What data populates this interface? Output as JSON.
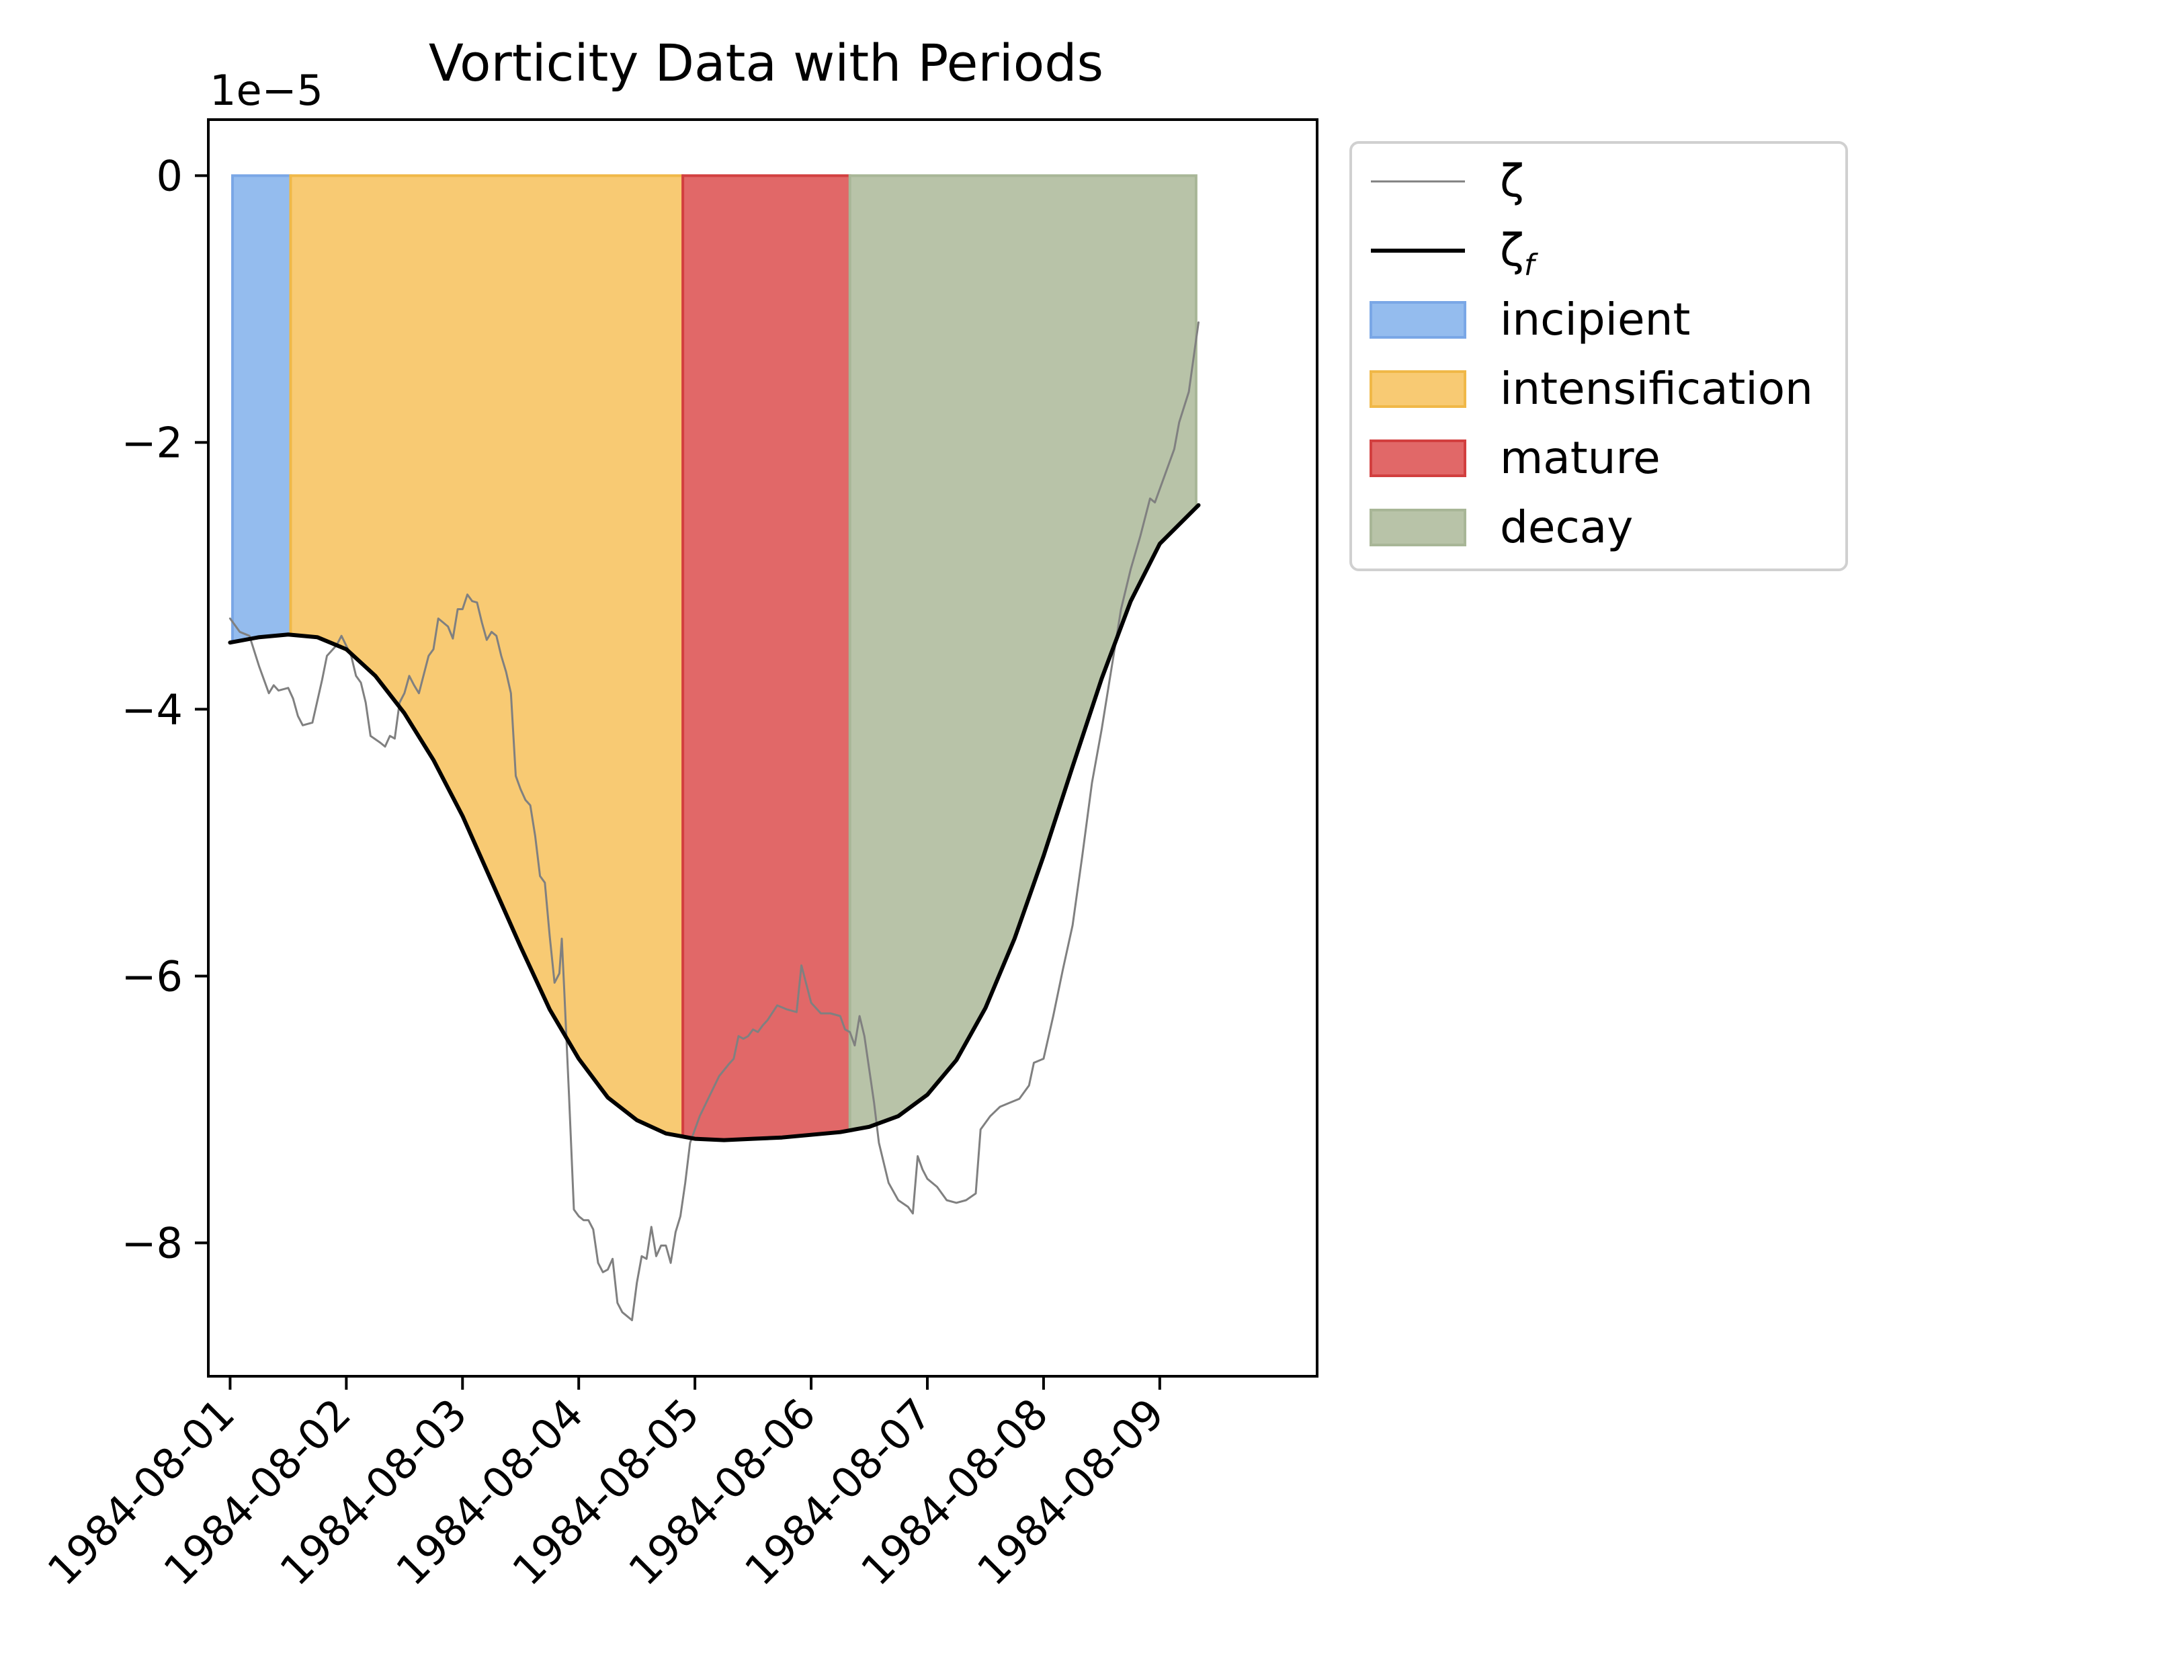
{
  "chart_data": {
    "type": "line",
    "title": "Vorticity Data with Periods",
    "offset_label": "1e−5",
    "xlabel": "",
    "ylabel": "",
    "xlim": [
      "1984-07-31T19:30",
      "1984-08-10T08:30"
    ],
    "ylim": [
      -9.0,
      0.42
    ],
    "x_ticks": [
      "1984-08-01",
      "1984-08-02",
      "1984-08-03",
      "1984-08-04",
      "1984-08-05",
      "1984-08-06",
      "1984-08-07",
      "1984-08-08",
      "1984-08-09"
    ],
    "y_ticks": [
      0,
      -2,
      -4,
      -6,
      -8
    ],
    "y_tick_labels": [
      "0",
      "−2",
      "−4",
      "−6",
      "−8"
    ],
    "grid": false,
    "legend_position": "outside right, top",
    "periods": [
      {
        "name": "incipient",
        "start": "1984-08-01T00:30",
        "end": "1984-08-01T12:30",
        "color": "#94bcee",
        "edge": "#7aa7e6"
      },
      {
        "name": "intensification",
        "start": "1984-08-01T12:30",
        "end": "1984-08-04T21:30",
        "color": "#f8ca73",
        "edge": "#f0b848"
      },
      {
        "name": "mature",
        "start": "1984-08-04T21:30",
        "end": "1984-08-06T08:00",
        "color": "#e16868",
        "edge": "#d23f3f"
      },
      {
        "name": "decay",
        "start": "1984-08-06T08:00",
        "end": "1984-08-09T07:30",
        "color": "#b8c3a8",
        "edge": "#a8b697"
      }
    ],
    "series": [
      {
        "name": "ζ",
        "color": "#808080",
        "points": [
          [
            "1984-08-01T00:00",
            -3.32
          ],
          [
            "1984-08-01T02:00",
            -3.42
          ],
          [
            "1984-08-01T04:00",
            -3.45
          ],
          [
            "1984-08-01T06:00",
            -3.68
          ],
          [
            "1984-08-01T08:00",
            -3.88
          ],
          [
            "1984-08-01T09:00",
            -3.82
          ],
          [
            "1984-08-01T10:00",
            -3.86
          ],
          [
            "1984-08-01T12:00",
            -3.84
          ],
          [
            "1984-08-01T13:00",
            -3.92
          ],
          [
            "1984-08-01T14:00",
            -4.05
          ],
          [
            "1984-08-01T15:00",
            -4.12
          ],
          [
            "1984-08-01T17:00",
            -4.1
          ],
          [
            "1984-08-01T19:00",
            -3.78
          ],
          [
            "1984-08-01T20:00",
            -3.6
          ],
          [
            "1984-08-01T22:00",
            -3.52
          ],
          [
            "1984-08-01T23:00",
            -3.45
          ],
          [
            "1984-08-02T01:00",
            -3.6
          ],
          [
            "1984-08-02T02:00",
            -3.75
          ],
          [
            "1984-08-02T03:00",
            -3.8
          ],
          [
            "1984-08-02T04:00",
            -3.95
          ],
          [
            "1984-08-02T05:00",
            -4.2
          ],
          [
            "1984-08-02T07:00",
            -4.25
          ],
          [
            "1984-08-02T08:00",
            -4.28
          ],
          [
            "1984-08-02T09:00",
            -4.2
          ],
          [
            "1984-08-02T10:00",
            -4.22
          ],
          [
            "1984-08-02T11:00",
            -3.95
          ],
          [
            "1984-08-02T12:00",
            -3.88
          ],
          [
            "1984-08-02T13:00",
            -3.75
          ],
          [
            "1984-08-02T14:00",
            -3.82
          ],
          [
            "1984-08-02T15:00",
            -3.88
          ],
          [
            "1984-08-02T17:00",
            -3.6
          ],
          [
            "1984-08-02T18:00",
            -3.55
          ],
          [
            "1984-08-02T19:00",
            -3.32
          ],
          [
            "1984-08-02T20:00",
            -3.35
          ],
          [
            "1984-08-02T21:00",
            -3.38
          ],
          [
            "1984-08-02T22:00",
            -3.47
          ],
          [
            "1984-08-02T23:00",
            -3.25
          ],
          [
            "1984-08-03T00:00",
            -3.25
          ],
          [
            "1984-08-03T01:00",
            -3.14
          ],
          [
            "1984-08-03T02:00",
            -3.19
          ],
          [
            "1984-08-03T03:00",
            -3.2
          ],
          [
            "1984-08-03T04:00",
            -3.35
          ],
          [
            "1984-08-03T05:00",
            -3.48
          ],
          [
            "1984-08-03T06:00",
            -3.42
          ],
          [
            "1984-08-03T07:00",
            -3.45
          ],
          [
            "1984-08-03T08:00",
            -3.6
          ],
          [
            "1984-08-03T09:00",
            -3.72
          ],
          [
            "1984-08-03T10:00",
            -3.88
          ],
          [
            "1984-08-03T11:00",
            -4.5
          ],
          [
            "1984-08-03T12:00",
            -4.6
          ],
          [
            "1984-08-03T13:00",
            -4.68
          ],
          [
            "1984-08-03T14:00",
            -4.72
          ],
          [
            "1984-08-03T15:00",
            -4.95
          ],
          [
            "1984-08-03T16:00",
            -5.25
          ],
          [
            "1984-08-03T17:00",
            -5.3
          ],
          [
            "1984-08-03T18:00",
            -5.7
          ],
          [
            "1984-08-03T19:00",
            -6.05
          ],
          [
            "1984-08-03T20:00",
            -5.98
          ],
          [
            "1984-08-03T20:30",
            -5.72
          ],
          [
            "1984-08-03T21:00",
            -6.1
          ],
          [
            "1984-08-03T22:00",
            -6.9
          ],
          [
            "1984-08-03T23:00",
            -7.75
          ],
          [
            "1984-08-04T00:00",
            -7.8
          ],
          [
            "1984-08-04T01:00",
            -7.83
          ],
          [
            "1984-08-04T02:00",
            -7.83
          ],
          [
            "1984-08-04T03:00",
            -7.9
          ],
          [
            "1984-08-04T04:00",
            -8.15
          ],
          [
            "1984-08-04T05:00",
            -8.22
          ],
          [
            "1984-08-04T06:00",
            -8.2
          ],
          [
            "1984-08-04T07:00",
            -8.12
          ],
          [
            "1984-08-04T08:00",
            -8.45
          ],
          [
            "1984-08-04T09:00",
            -8.52
          ],
          [
            "1984-08-04T10:00",
            -8.55
          ],
          [
            "1984-08-04T11:00",
            -8.58
          ],
          [
            "1984-08-04T12:00",
            -8.3
          ],
          [
            "1984-08-04T13:00",
            -8.1
          ],
          [
            "1984-08-04T14:00",
            -8.12
          ],
          [
            "1984-08-04T15:00",
            -7.88
          ],
          [
            "1984-08-04T16:00",
            -8.1
          ],
          [
            "1984-08-04T17:00",
            -8.02
          ],
          [
            "1984-08-04T18:00",
            -8.02
          ],
          [
            "1984-08-04T19:00",
            -8.15
          ],
          [
            "1984-08-04T20:00",
            -7.92
          ],
          [
            "1984-08-04T21:00",
            -7.8
          ],
          [
            "1984-08-04T22:00",
            -7.55
          ],
          [
            "1984-08-04T23:00",
            -7.25
          ],
          [
            "1984-08-05T01:00",
            -7.05
          ],
          [
            "1984-08-05T03:00",
            -6.9
          ],
          [
            "1984-08-05T05:00",
            -6.75
          ],
          [
            "1984-08-05T07:00",
            -6.66
          ],
          [
            "1984-08-05T08:00",
            -6.62
          ],
          [
            "1984-08-05T09:00",
            -6.45
          ],
          [
            "1984-08-05T10:00",
            -6.47
          ],
          [
            "1984-08-05T11:00",
            -6.45
          ],
          [
            "1984-08-05T12:00",
            -6.4
          ],
          [
            "1984-08-05T13:00",
            -6.42
          ],
          [
            "1984-08-05T14:00",
            -6.37
          ],
          [
            "1984-08-05T15:00",
            -6.33
          ],
          [
            "1984-08-05T17:00",
            -6.22
          ],
          [
            "1984-08-05T19:00",
            -6.25
          ],
          [
            "1984-08-05T21:00",
            -6.27
          ],
          [
            "1984-08-05T22:00",
            -5.92
          ],
          [
            "1984-08-06T00:00",
            -6.2
          ],
          [
            "1984-08-06T02:00",
            -6.28
          ],
          [
            "1984-08-06T04:00",
            -6.28
          ],
          [
            "1984-08-06T06:00",
            -6.3
          ],
          [
            "1984-08-06T07:00",
            -6.4
          ],
          [
            "1984-08-06T08:00",
            -6.42
          ],
          [
            "1984-08-06T09:00",
            -6.52
          ],
          [
            "1984-08-06T10:00",
            -6.3
          ],
          [
            "1984-08-06T11:00",
            -6.45
          ],
          [
            "1984-08-06T12:00",
            -6.7
          ],
          [
            "1984-08-06T13:00",
            -6.95
          ],
          [
            "1984-08-06T14:00",
            -7.25
          ],
          [
            "1984-08-06T16:00",
            -7.55
          ],
          [
            "1984-08-06T18:00",
            -7.68
          ],
          [
            "1984-08-06T20:00",
            -7.73
          ],
          [
            "1984-08-06T21:00",
            -7.78
          ],
          [
            "1984-08-06T22:00",
            -7.35
          ],
          [
            "1984-08-06T23:00",
            -7.45
          ],
          [
            "1984-08-07T00:00",
            -7.52
          ],
          [
            "1984-08-07T02:00",
            -7.58
          ],
          [
            "1984-08-07T04:00",
            -7.68
          ],
          [
            "1984-08-07T06:00",
            -7.7
          ],
          [
            "1984-08-07T08:00",
            -7.68
          ],
          [
            "1984-08-07T10:00",
            -7.63
          ],
          [
            "1984-08-07T11:00",
            -7.15
          ],
          [
            "1984-08-07T13:00",
            -7.05
          ],
          [
            "1984-08-07T15:00",
            -6.98
          ],
          [
            "1984-08-07T17:00",
            -6.95
          ],
          [
            "1984-08-07T19:00",
            -6.92
          ],
          [
            "1984-08-07T21:00",
            -6.82
          ],
          [
            "1984-08-07T22:00",
            -6.65
          ],
          [
            "1984-08-08T00:00",
            -6.62
          ],
          [
            "1984-08-08T02:00",
            -6.3
          ],
          [
            "1984-08-08T04:00",
            -5.95
          ],
          [
            "1984-08-08T06:00",
            -5.62
          ],
          [
            "1984-08-08T08:00",
            -5.1
          ],
          [
            "1984-08-08T10:00",
            -4.55
          ],
          [
            "1984-08-08T12:00",
            -4.15
          ],
          [
            "1984-08-08T14:00",
            -3.7
          ],
          [
            "1984-08-08T16:00",
            -3.25
          ],
          [
            "1984-08-08T18:00",
            -2.95
          ],
          [
            "1984-08-08T20:00",
            -2.7
          ],
          [
            "1984-08-08T22:00",
            -2.42
          ],
          [
            "1984-08-08T23:00",
            -2.45
          ],
          [
            "1984-08-09T01:00",
            -2.25
          ],
          [
            "1984-08-09T03:00",
            -2.05
          ],
          [
            "1984-08-09T04:00",
            -1.85
          ],
          [
            "1984-08-09T06:00",
            -1.62
          ],
          [
            "1984-08-09T08:00",
            -1.1
          ]
        ]
      },
      {
        "name": "ζ_f",
        "color": "#000000",
        "points": [
          [
            "1984-08-01T00:00",
            -3.5
          ],
          [
            "1984-08-01T06:00",
            -3.46
          ],
          [
            "1984-08-01T12:00",
            -3.44
          ],
          [
            "1984-08-01T18:00",
            -3.46
          ],
          [
            "1984-08-02T00:00",
            -3.55
          ],
          [
            "1984-08-02T06:00",
            -3.75
          ],
          [
            "1984-08-02T12:00",
            -4.03
          ],
          [
            "1984-08-02T18:00",
            -4.38
          ],
          [
            "1984-08-03T00:00",
            -4.8
          ],
          [
            "1984-08-03T06:00",
            -5.29
          ],
          [
            "1984-08-03T12:00",
            -5.78
          ],
          [
            "1984-08-03T18:00",
            -6.25
          ],
          [
            "1984-08-04T00:00",
            -6.62
          ],
          [
            "1984-08-04T06:00",
            -6.91
          ],
          [
            "1984-08-04T12:00",
            -7.08
          ],
          [
            "1984-08-04T18:00",
            -7.18
          ],
          [
            "1984-08-05T00:00",
            -7.22
          ],
          [
            "1984-08-05T06:00",
            -7.23
          ],
          [
            "1984-08-05T12:00",
            -7.22
          ],
          [
            "1984-08-05T18:00",
            -7.21
          ],
          [
            "1984-08-06T00:00",
            -7.19
          ],
          [
            "1984-08-06T06:00",
            -7.17
          ],
          [
            "1984-08-06T12:00",
            -7.13
          ],
          [
            "1984-08-06T18:00",
            -7.05
          ],
          [
            "1984-08-07T00:00",
            -6.89
          ],
          [
            "1984-08-07T06:00",
            -6.63
          ],
          [
            "1984-08-07T12:00",
            -6.24
          ],
          [
            "1984-08-07T18:00",
            -5.72
          ],
          [
            "1984-08-08T00:00",
            -5.1
          ],
          [
            "1984-08-08T06:00",
            -4.43
          ],
          [
            "1984-08-08T12:00",
            -3.77
          ],
          [
            "1984-08-08T18:00",
            -3.19
          ],
          [
            "1984-08-09T00:00",
            -2.76
          ],
          [
            "1984-08-09T08:00",
            -2.47
          ]
        ]
      }
    ],
    "legend": [
      {
        "label": "ζ",
        "kind": "line",
        "series": 0
      },
      {
        "label": "ζ",
        "subscript": "f",
        "kind": "line",
        "series": 1
      },
      {
        "label": "incipient",
        "kind": "patch",
        "period": 0
      },
      {
        "label": "intensification",
        "kind": "patch",
        "period": 1
      },
      {
        "label": "mature",
        "kind": "patch",
        "period": 2
      },
      {
        "label": "decay",
        "kind": "patch",
        "period": 3
      }
    ]
  }
}
